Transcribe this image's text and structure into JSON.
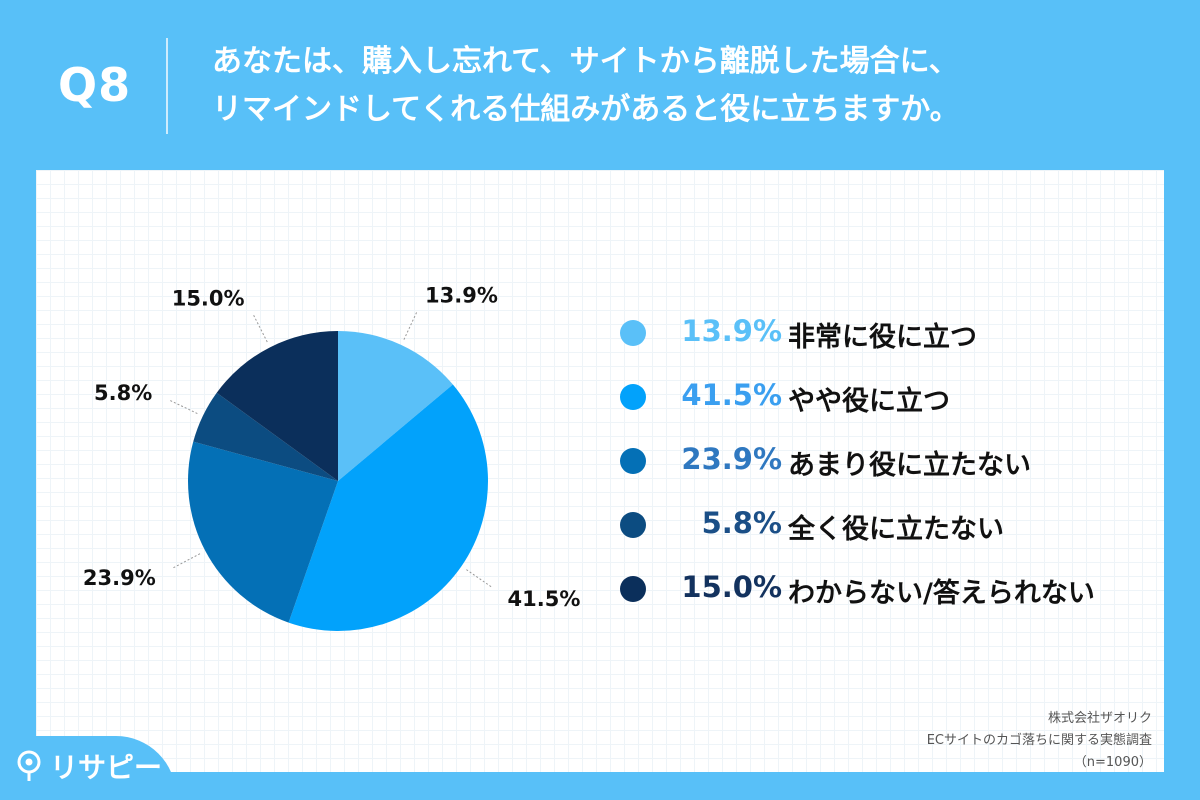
{
  "header": {
    "question_number": "Q8",
    "question_line1": "あなたは、購入し忘れて、サイトから離脱した場合に、",
    "question_line2": "リマインドしてくれる仕組みがあると役に立ちますか。"
  },
  "chart_data": {
    "type": "pie",
    "title": "",
    "slices": [
      {
        "label": "非常に役に立つ",
        "value": 13.9,
        "display": "13.9%",
        "color": "#5ac0f8"
      },
      {
        "label": "やや役に立つ",
        "value": 41.5,
        "display": "41.5%",
        "color": "#02a2fb"
      },
      {
        "label": "あまり役に立たない",
        "value": 23.9,
        "display": "23.9%",
        "color": "#0470b6"
      },
      {
        "label": "全く役に立たない",
        "value": 5.8,
        "display": "5.8%",
        "color": "#0c4c81"
      },
      {
        "label": "わからない/答えられない",
        "value": 15.0,
        "display": "15.0%",
        "color": "#0b2f5b"
      }
    ],
    "legend_position": "right"
  },
  "legend": {
    "value_colors": [
      "#5ac0f8",
      "#3a9ff0",
      "#2f78c0",
      "#1b4f87",
      "#13325e"
    ]
  },
  "footer": {
    "company": "株式会社ザオリク",
    "survey": "ECサイトのカゴ落ちに関する実態調査",
    "sample": "（n=1090）"
  },
  "logo": {
    "text": "リサピー",
    "icon": "pin-icon"
  }
}
